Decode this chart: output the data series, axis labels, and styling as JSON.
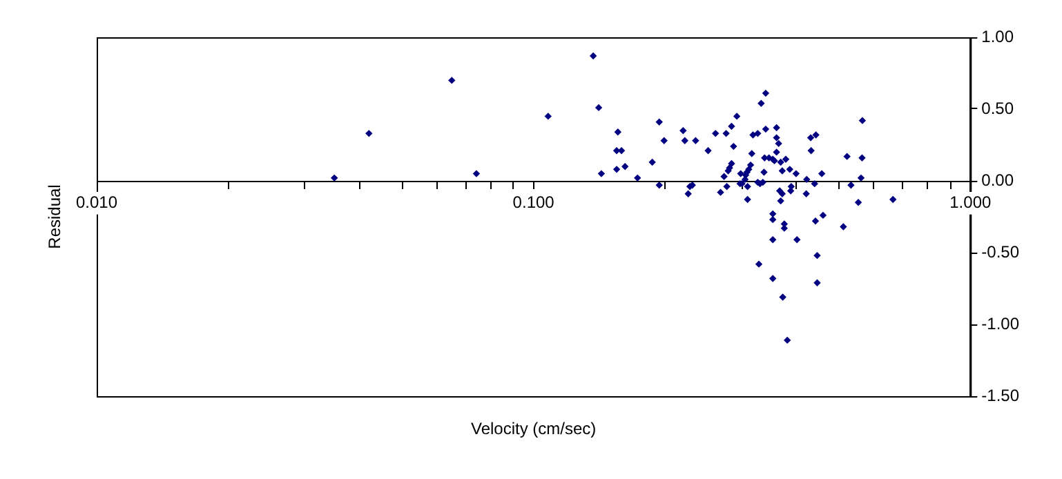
{
  "chart_data": {
    "type": "scatter",
    "xlabel": "Velocity (cm/sec)",
    "ylabel": "Residual",
    "log": "x",
    "grid": false,
    "legend": false,
    "marker": "diamond",
    "xlim": [
      0.01,
      1
    ],
    "xticks": [
      {
        "value": 0.01,
        "label": "0.010"
      },
      {
        "value": 0.02,
        "label": null
      },
      {
        "value": 0.03,
        "label": null
      },
      {
        "value": 0.04,
        "label": null
      },
      {
        "value": 0.05,
        "label": null
      },
      {
        "value": 0.06,
        "label": null
      },
      {
        "value": 0.07,
        "label": null
      },
      {
        "value": 0.08,
        "label": null
      },
      {
        "value": 0.09,
        "label": null
      },
      {
        "value": 0.1,
        "label": "0.100"
      },
      {
        "value": 0.2,
        "label": null
      },
      {
        "value": 0.3,
        "label": null
      },
      {
        "value": 0.4,
        "label": null
      },
      {
        "value": 0.5,
        "label": null
      },
      {
        "value": 0.6,
        "label": null
      },
      {
        "value": 0.7,
        "label": null
      },
      {
        "value": 0.8,
        "label": null
      },
      {
        "value": 0.9,
        "label": null
      },
      {
        "value": 1,
        "label": "1.000"
      }
    ],
    "ylim": [
      -1.5,
      1
    ],
    "yticks": [
      {
        "value": -1.5,
        "label": "-1.50"
      },
      {
        "value": -1,
        "label": "-1.00"
      },
      {
        "value": -0.5,
        "label": "-0.50"
      },
      {
        "value": 0,
        "label": "0.00"
      },
      {
        "value": 0.5,
        "label": "0.50"
      },
      {
        "value": 1,
        "label": "1.00"
      }
    ],
    "series": [
      {
        "color": "#000080",
        "x": [
          0.035,
          0.042,
          0.065,
          0.074,
          0.108,
          0.137,
          0.141,
          0.143,
          0.156,
          0.155,
          0.159,
          0.155,
          0.162,
          0.173,
          0.187,
          0.194,
          0.194,
          0.199,
          0.22,
          0.222,
          0.226,
          0.228,
          0.231,
          0.235,
          0.251,
          0.261,
          0.268,
          0.273,
          0.276,
          0.277,
          0.279,
          0.281,
          0.284,
          0.284,
          0.287,
          0.292,
          0.298,
          0.297,
          0.3,
          0.305,
          0.306,
          0.308,
          0.309,
          0.309,
          0.311,
          0.314,
          0.316,
          0.318,
          0.326,
          0.326,
          0.33,
          0.332,
          0.335,
          0.338,
          0.34,
          0.34,
          0.337,
          0.346,
          0.353,
          0.356,
          0.36,
          0.36,
          0.364,
          0.36,
          0.368,
          0.371,
          0.366,
          0.371,
          0.368,
          0.378,
          0.386,
          0.389,
          0.388,
          0.399,
          0.422,
          0.421,
          0.432,
          0.431,
          0.443,
          0.44,
          0.457,
          0.522,
          0.533,
          0.554,
          0.562,
          0.565,
          0.566,
          0.665,
          0.353,
          0.353,
          0.375,
          0.375,
          0.442,
          0.46,
          0.512,
          0.353,
          0.401,
          0.446,
          0.328,
          0.353,
          0.446,
          0.372,
          0.381
        ],
        "values": [
          0.02,
          0.33,
          0.7,
          0.05,
          0.45,
          0.87,
          0.51,
          0.05,
          0.34,
          0.21,
          0.21,
          0.08,
          0.1,
          0.02,
          0.13,
          0.41,
          -0.03,
          0.28,
          0.35,
          0.28,
          -0.09,
          -0.04,
          -0.03,
          0.28,
          0.21,
          0.33,
          -0.08,
          0.03,
          0.33,
          -0.04,
          0.07,
          0.09,
          0.12,
          0.38,
          0.24,
          0.45,
          0.05,
          -0.02,
          -0.02,
          0.01,
          0.04,
          0.06,
          -0.04,
          -0.13,
          0.08,
          0.11,
          0.19,
          0.32,
          0.33,
          -0.01,
          -0.02,
          0.54,
          -0.01,
          0.16,
          0.61,
          0.36,
          0.06,
          0.16,
          0.15,
          0.14,
          0.37,
          0.3,
          0.26,
          0.2,
          0.13,
          0.07,
          -0.07,
          -0.09,
          -0.14,
          0.15,
          0.08,
          -0.04,
          -0.07,
          0.05,
          0.01,
          -0.09,
          0.21,
          0.3,
          0.32,
          -0.02,
          0.05,
          0.17,
          -0.03,
          -0.15,
          0.02,
          0.16,
          0.42,
          -0.13,
          -0.23,
          -0.27,
          -0.3,
          -0.33,
          -0.28,
          -0.24,
          -0.32,
          -0.41,
          -0.41,
          -0.52,
          -0.58,
          -0.68,
          -0.71,
          -0.81,
          -1.11
        ]
      }
    ]
  }
}
